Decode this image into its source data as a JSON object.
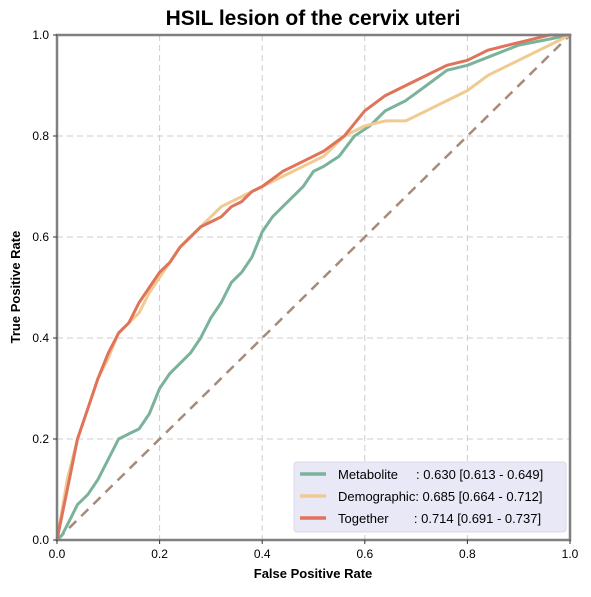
{
  "chart_data": {
    "type": "line",
    "title": "HSIL lesion of the cervix uteri",
    "xlabel": "False Positive Rate",
    "ylabel": "True Positive Rate",
    "xlim": [
      0,
      1
    ],
    "ylim": [
      0,
      1
    ],
    "x_ticks": [
      "0.0",
      "0.2",
      "0.4",
      "0.6",
      "0.8",
      "1.0"
    ],
    "y_ticks": [
      "0.0",
      "0.2",
      "0.4",
      "0.6",
      "0.8",
      "1.0"
    ],
    "grid": true,
    "legend_position": "bottom-right",
    "reference_line": {
      "x": [
        0,
        1
      ],
      "y": [
        0,
        1
      ],
      "color": "#a88a78",
      "style": "dashed"
    },
    "series": [
      {
        "name": "Metabolite",
        "label": "Metabolite     : 0.630 [0.613 - 0.649]",
        "color": "#7ab39a",
        "x": [
          0,
          0.01,
          0.02,
          0.03,
          0.04,
          0.06,
          0.08,
          0.1,
          0.12,
          0.14,
          0.16,
          0.18,
          0.2,
          0.22,
          0.24,
          0.26,
          0.28,
          0.3,
          0.32,
          0.34,
          0.36,
          0.38,
          0.4,
          0.42,
          0.44,
          0.46,
          0.48,
          0.5,
          0.52,
          0.55,
          0.58,
          0.61,
          0.64,
          0.68,
          0.72,
          0.76,
          0.8,
          0.85,
          0.9,
          0.95,
          1.0
        ],
        "y": [
          0,
          0.01,
          0.03,
          0.05,
          0.07,
          0.09,
          0.12,
          0.16,
          0.2,
          0.21,
          0.22,
          0.25,
          0.3,
          0.33,
          0.35,
          0.37,
          0.4,
          0.44,
          0.47,
          0.51,
          0.53,
          0.56,
          0.61,
          0.64,
          0.66,
          0.68,
          0.7,
          0.73,
          0.74,
          0.76,
          0.8,
          0.82,
          0.85,
          0.87,
          0.9,
          0.93,
          0.94,
          0.96,
          0.98,
          0.99,
          1.0
        ]
      },
      {
        "name": "Demographic",
        "label": "Demographic: 0.685 [0.664 - 0.712]",
        "color": "#f0ca90",
        "x": [
          0,
          0.01,
          0.02,
          0.04,
          0.06,
          0.08,
          0.1,
          0.12,
          0.14,
          0.16,
          0.18,
          0.2,
          0.22,
          0.24,
          0.26,
          0.28,
          0.3,
          0.32,
          0.34,
          0.36,
          0.38,
          0.4,
          0.44,
          0.48,
          0.52,
          0.56,
          0.6,
          0.64,
          0.68,
          0.72,
          0.76,
          0.8,
          0.84,
          0.88,
          0.92,
          0.96,
          1.0
        ],
        "y": [
          0,
          0.06,
          0.12,
          0.2,
          0.26,
          0.32,
          0.36,
          0.41,
          0.43,
          0.45,
          0.49,
          0.52,
          0.55,
          0.58,
          0.6,
          0.62,
          0.64,
          0.66,
          0.67,
          0.68,
          0.69,
          0.7,
          0.72,
          0.74,
          0.76,
          0.8,
          0.82,
          0.83,
          0.83,
          0.85,
          0.87,
          0.89,
          0.92,
          0.94,
          0.96,
          0.98,
          1.0
        ]
      },
      {
        "name": "Together",
        "label": "Together       : 0.714 [0.691 - 0.737]",
        "color": "#e0745a",
        "x": [
          0,
          0.01,
          0.02,
          0.03,
          0.04,
          0.06,
          0.08,
          0.1,
          0.12,
          0.14,
          0.16,
          0.18,
          0.2,
          0.22,
          0.24,
          0.26,
          0.28,
          0.3,
          0.32,
          0.34,
          0.36,
          0.38,
          0.4,
          0.44,
          0.48,
          0.52,
          0.56,
          0.6,
          0.64,
          0.68,
          0.72,
          0.76,
          0.8,
          0.84,
          0.88,
          0.92,
          0.96,
          1.0
        ],
        "y": [
          0,
          0.05,
          0.1,
          0.15,
          0.2,
          0.26,
          0.32,
          0.37,
          0.41,
          0.43,
          0.47,
          0.5,
          0.53,
          0.55,
          0.58,
          0.6,
          0.62,
          0.63,
          0.64,
          0.66,
          0.67,
          0.69,
          0.7,
          0.73,
          0.75,
          0.77,
          0.8,
          0.85,
          0.88,
          0.9,
          0.92,
          0.94,
          0.95,
          0.97,
          0.98,
          0.99,
          1.0,
          1.0
        ]
      }
    ]
  }
}
